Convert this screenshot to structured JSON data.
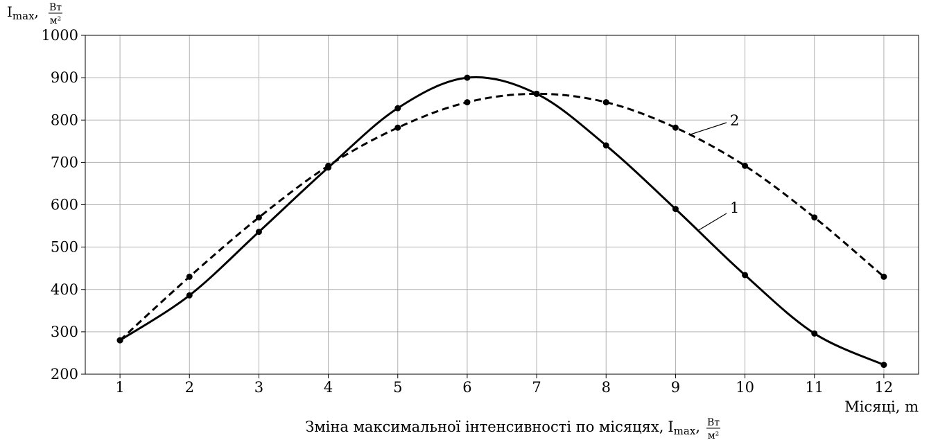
{
  "chart_data": {
    "type": "line",
    "title": "",
    "caption": {
      "main": "Зміна максимальної інтенсивності по місяцях,",
      "symbol": "I",
      "subscript": "max",
      "unit_num": "Вт",
      "unit_den": "м²"
    },
    "xlabel": "Місяці, m",
    "ylabel": {
      "symbol": "I",
      "subscript": "max",
      "unit_num": "Вт",
      "unit_den": "м²"
    },
    "x": [
      1,
      2,
      3,
      4,
      5,
      6,
      7,
      8,
      9,
      10,
      11,
      12
    ],
    "xlim": [
      0.5,
      12.5
    ],
    "ylim": [
      200,
      1000
    ],
    "yticks": [
      200,
      300,
      400,
      500,
      600,
      700,
      800,
      900,
      1000
    ],
    "grid": true,
    "series": [
      {
        "name": "1",
        "style": "solid",
        "values": [
          280,
          386,
          536,
          688,
          828,
          900,
          862,
          740,
          590,
          434,
          296,
          222
        ]
      },
      {
        "name": "2",
        "style": "dashed",
        "values": [
          280,
          430,
          570,
          692,
          782,
          842,
          862,
          842,
          782,
          692,
          570,
          430
        ]
      }
    ]
  }
}
